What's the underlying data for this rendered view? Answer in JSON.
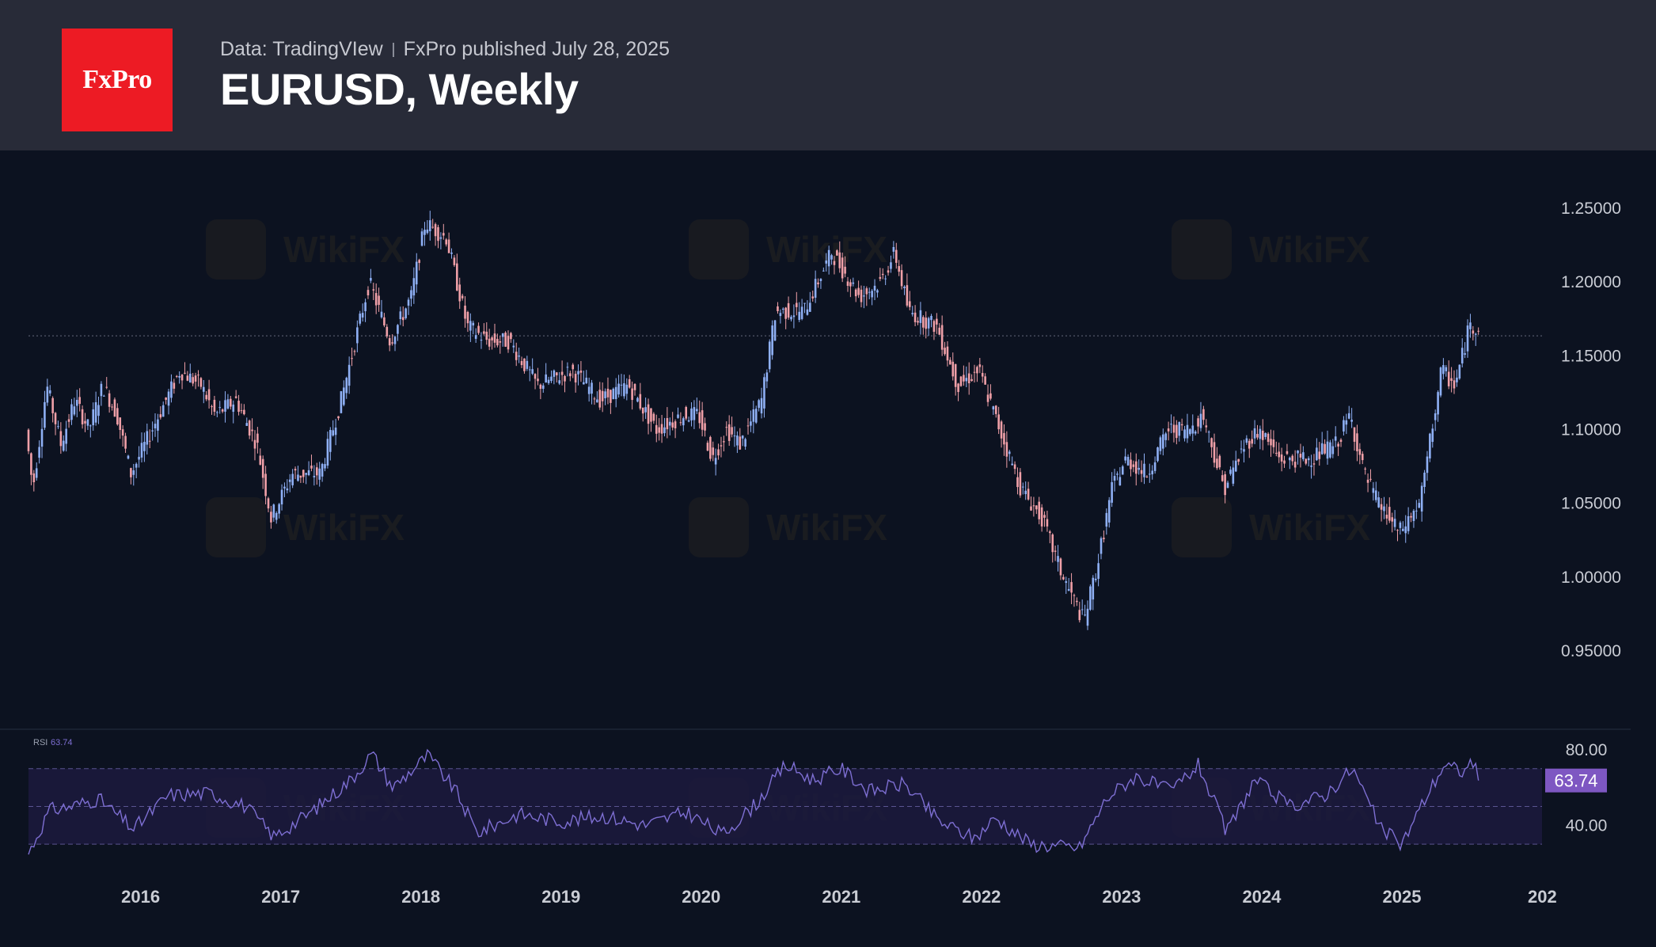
{
  "header": {
    "logo_text": "FxPro",
    "source": "Data: TradingVIew",
    "published": "FxPro published July 28, 2025",
    "title": "EURUSD, Weekly"
  },
  "watermark": {
    "text": "WikiFX"
  },
  "colors": {
    "header_bg": "#282b38",
    "plot_bg": "#0c1220",
    "logo_bg": "#ed1b24",
    "up_candle": "#8fb0f5",
    "down_candle": "#f0a0a8",
    "rsi_line": "#7e6fd3",
    "rsi_band": "#1c1a3e",
    "rsi_badge": "#7e57c2"
  },
  "chart_data": [
    {
      "type": "candlestick",
      "title": "EURUSD, Weekly",
      "y_tick_labels": [
        "1.25000",
        "1.20000",
        "1.15000",
        "1.10000",
        "1.05000",
        "1.00000",
        "0.95000"
      ],
      "ylim": [
        0.935,
        1.265
      ],
      "x_tick_labels": [
        "2016",
        "2017",
        "2018",
        "2019",
        "2020",
        "2021",
        "2022",
        "2023",
        "2024",
        "2025",
        "202"
      ],
      "xlim": [
        2015.2,
        2026.0
      ],
      "last_price_line": 1.1635,
      "grid": false,
      "path_points": [
        {
          "x": 2015.2,
          "y": 1.1
        },
        {
          "x": 2015.25,
          "y": 1.06
        },
        {
          "x": 2015.35,
          "y": 1.13
        },
        {
          "x": 2015.45,
          "y": 1.09
        },
        {
          "x": 2015.55,
          "y": 1.12
        },
        {
          "x": 2015.65,
          "y": 1.1
        },
        {
          "x": 2015.75,
          "y": 1.13
        },
        {
          "x": 2015.85,
          "y": 1.11
        },
        {
          "x": 2015.95,
          "y": 1.07
        },
        {
          "x": 2016.05,
          "y": 1.09
        },
        {
          "x": 2016.15,
          "y": 1.11
        },
        {
          "x": 2016.3,
          "y": 1.14
        },
        {
          "x": 2016.45,
          "y": 1.13
        },
        {
          "x": 2016.55,
          "y": 1.11
        },
        {
          "x": 2016.7,
          "y": 1.12
        },
        {
          "x": 2016.85,
          "y": 1.09
        },
        {
          "x": 2016.95,
          "y": 1.04
        },
        {
          "x": 2017.1,
          "y": 1.07
        },
        {
          "x": 2017.3,
          "y": 1.07
        },
        {
          "x": 2017.45,
          "y": 1.12
        },
        {
          "x": 2017.55,
          "y": 1.16
        },
        {
          "x": 2017.65,
          "y": 1.2
        },
        {
          "x": 2017.8,
          "y": 1.16
        },
        {
          "x": 2017.95,
          "y": 1.19
        },
        {
          "x": 2018.05,
          "y": 1.24
        },
        {
          "x": 2018.2,
          "y": 1.23
        },
        {
          "x": 2018.35,
          "y": 1.17
        },
        {
          "x": 2018.5,
          "y": 1.16
        },
        {
          "x": 2018.65,
          "y": 1.16
        },
        {
          "x": 2018.85,
          "y": 1.13
        },
        {
          "x": 2019.1,
          "y": 1.14
        },
        {
          "x": 2019.3,
          "y": 1.12
        },
        {
          "x": 2019.5,
          "y": 1.13
        },
        {
          "x": 2019.7,
          "y": 1.1
        },
        {
          "x": 2019.9,
          "y": 1.11
        },
        {
          "x": 2020.0,
          "y": 1.11
        },
        {
          "x": 2020.1,
          "y": 1.08
        },
        {
          "x": 2020.2,
          "y": 1.1
        },
        {
          "x": 2020.3,
          "y": 1.09
        },
        {
          "x": 2020.45,
          "y": 1.12
        },
        {
          "x": 2020.55,
          "y": 1.18
        },
        {
          "x": 2020.75,
          "y": 1.18
        },
        {
          "x": 2020.95,
          "y": 1.22
        },
        {
          "x": 2021.15,
          "y": 1.19
        },
        {
          "x": 2021.3,
          "y": 1.2
        },
        {
          "x": 2021.4,
          "y": 1.22
        },
        {
          "x": 2021.5,
          "y": 1.18
        },
        {
          "x": 2021.7,
          "y": 1.17
        },
        {
          "x": 2021.85,
          "y": 1.13
        },
        {
          "x": 2022.0,
          "y": 1.14
        },
        {
          "x": 2022.15,
          "y": 1.1
        },
        {
          "x": 2022.3,
          "y": 1.06
        },
        {
          "x": 2022.45,
          "y": 1.04
        },
        {
          "x": 2022.6,
          "y": 1.0
        },
        {
          "x": 2022.75,
          "y": 0.97
        },
        {
          "x": 2022.85,
          "y": 1.01
        },
        {
          "x": 2022.95,
          "y": 1.06
        },
        {
          "x": 2023.05,
          "y": 1.08
        },
        {
          "x": 2023.2,
          "y": 1.07
        },
        {
          "x": 2023.35,
          "y": 1.1
        },
        {
          "x": 2023.5,
          "y": 1.1
        },
        {
          "x": 2023.6,
          "y": 1.11
        },
        {
          "x": 2023.75,
          "y": 1.06
        },
        {
          "x": 2023.9,
          "y": 1.09
        },
        {
          "x": 2024.0,
          "y": 1.1
        },
        {
          "x": 2024.15,
          "y": 1.08
        },
        {
          "x": 2024.35,
          "y": 1.08
        },
        {
          "x": 2024.55,
          "y": 1.09
        },
        {
          "x": 2024.65,
          "y": 1.11
        },
        {
          "x": 2024.75,
          "y": 1.07
        },
        {
          "x": 2024.85,
          "y": 1.05
        },
        {
          "x": 2025.0,
          "y": 1.03
        },
        {
          "x": 2025.15,
          "y": 1.05
        },
        {
          "x": 2025.2,
          "y": 1.08
        },
        {
          "x": 2025.3,
          "y": 1.14
        },
        {
          "x": 2025.4,
          "y": 1.13
        },
        {
          "x": 2025.5,
          "y": 1.17
        },
        {
          "x": 2025.55,
          "y": 1.17
        }
      ]
    },
    {
      "type": "line",
      "title": "RSI",
      "indicator_label": "RSI",
      "current_value": 63.74,
      "y_tick_labels": [
        "80.00",
        "40.00"
      ],
      "ylim": [
        20,
        85
      ],
      "bands": [
        70,
        50,
        30
      ],
      "path_points": [
        {
          "x": 2015.2,
          "y": 25
        },
        {
          "x": 2015.35,
          "y": 48
        },
        {
          "x": 2015.5,
          "y": 50
        },
        {
          "x": 2015.7,
          "y": 54
        },
        {
          "x": 2015.95,
          "y": 38
        },
        {
          "x": 2016.2,
          "y": 56
        },
        {
          "x": 2016.5,
          "y": 57
        },
        {
          "x": 2016.75,
          "y": 50
        },
        {
          "x": 2016.95,
          "y": 34
        },
        {
          "x": 2017.2,
          "y": 46
        },
        {
          "x": 2017.5,
          "y": 64
        },
        {
          "x": 2017.65,
          "y": 78
        },
        {
          "x": 2017.8,
          "y": 60
        },
        {
          "x": 2018.05,
          "y": 77
        },
        {
          "x": 2018.25,
          "y": 58
        },
        {
          "x": 2018.4,
          "y": 36
        },
        {
          "x": 2018.7,
          "y": 46
        },
        {
          "x": 2019.0,
          "y": 42
        },
        {
          "x": 2019.3,
          "y": 45
        },
        {
          "x": 2019.6,
          "y": 40
        },
        {
          "x": 2019.9,
          "y": 47
        },
        {
          "x": 2020.15,
          "y": 35
        },
        {
          "x": 2020.4,
          "y": 52
        },
        {
          "x": 2020.6,
          "y": 72
        },
        {
          "x": 2020.8,
          "y": 64
        },
        {
          "x": 2021.0,
          "y": 70
        },
        {
          "x": 2021.2,
          "y": 58
        },
        {
          "x": 2021.45,
          "y": 62
        },
        {
          "x": 2021.7,
          "y": 42
        },
        {
          "x": 2021.95,
          "y": 33
        },
        {
          "x": 2022.1,
          "y": 44
        },
        {
          "x": 2022.35,
          "y": 30
        },
        {
          "x": 2022.7,
          "y": 28
        },
        {
          "x": 2022.9,
          "y": 55
        },
        {
          "x": 2023.1,
          "y": 66
        },
        {
          "x": 2023.35,
          "y": 58
        },
        {
          "x": 2023.55,
          "y": 72
        },
        {
          "x": 2023.75,
          "y": 36
        },
        {
          "x": 2023.95,
          "y": 64
        },
        {
          "x": 2024.2,
          "y": 50
        },
        {
          "x": 2024.45,
          "y": 56
        },
        {
          "x": 2024.65,
          "y": 70
        },
        {
          "x": 2024.85,
          "y": 38
        },
        {
          "x": 2025.0,
          "y": 30
        },
        {
          "x": 2025.15,
          "y": 52
        },
        {
          "x": 2025.3,
          "y": 72
        },
        {
          "x": 2025.45,
          "y": 68
        },
        {
          "x": 2025.5,
          "y": 76
        },
        {
          "x": 2025.55,
          "y": 63.74
        }
      ]
    }
  ]
}
